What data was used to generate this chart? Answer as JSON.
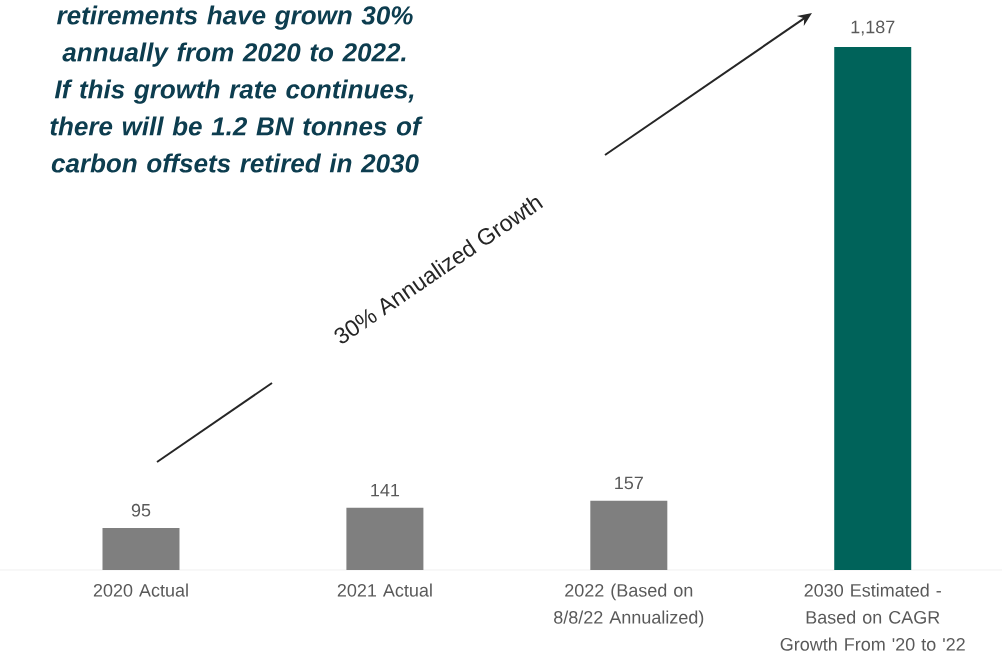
{
  "chart_data": {
    "type": "bar",
    "categories": [
      "2020 Actual",
      "2021 Actual",
      "2022 (Based on 8/8/22 Annualized)",
      "2030 Estimated - Based on CAGR Growth From '20 to '22"
    ],
    "values": [
      95,
      141,
      157,
      1187
    ],
    "colors": [
      "#7f7f7f",
      "#7f7f7f",
      "#7f7f7f",
      "#00635a"
    ],
    "value_labels": [
      "95",
      "141",
      "157",
      "1,187"
    ],
    "annotations": [
      "retirements have grown 30% annually from 2020 to 2022.  If this growth rate continues, there will be 1.2 BN tonnes of carbon offsets retired in 2030",
      "30% Annualized Growth"
    ]
  }
}
